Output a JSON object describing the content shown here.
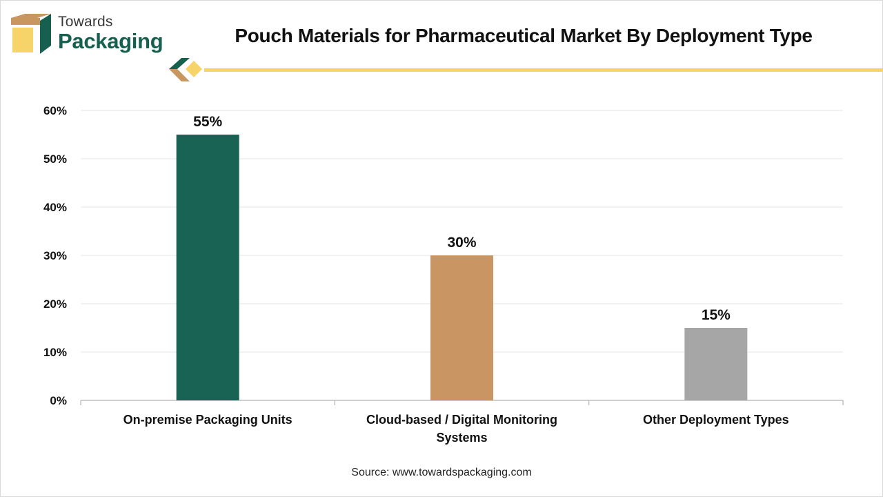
{
  "brand": {
    "line1": "Towards",
    "line2": "Packaging",
    "colors": {
      "dark_green": "#17604f",
      "tan": "#c8965f",
      "yellow": "#f6d46a"
    }
  },
  "source": "Source: www.towardspackaging.com",
  "chart_data": {
    "type": "bar",
    "title": "Pouch Materials for Pharmaceutical Market By Deployment Type",
    "categories": [
      [
        "On-premise Packaging Units"
      ],
      [
        "Cloud-based / Digital Monitoring",
        "Systems"
      ],
      [
        "Other Deployment Types"
      ]
    ],
    "values": [
      55,
      30,
      15
    ],
    "data_labels": [
      "55%",
      "30%",
      "15%"
    ],
    "bar_colors": [
      "#186354",
      "#c99663",
      "#a6a6a6"
    ],
    "y_ticks": [
      "0%",
      "10%",
      "20%",
      "30%",
      "40%",
      "50%",
      "60%"
    ],
    "ylim": [
      0,
      60
    ],
    "grid": true,
    "legend": false,
    "xlabel": "",
    "ylabel": ""
  }
}
